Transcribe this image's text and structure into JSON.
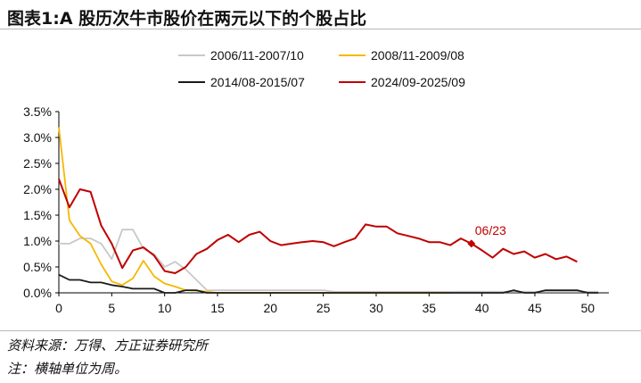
{
  "figure": {
    "title": "图表1:A 股历次牛市股价在两元以下的个股占比",
    "source_note": "资料来源：万得、方正证券研究所",
    "axis_note": "注：横轴单位为周。"
  },
  "colors": {
    "s2006": "#c8c8c8",
    "s2008": "#f5b800",
    "s2014": "#1a1a1a",
    "s2024": "#c00000",
    "axis": "#000000"
  },
  "chart_data": {
    "type": "line",
    "title": "",
    "xlabel": "",
    "ylabel": "",
    "xlim": [
      0,
      52
    ],
    "ylim": [
      0,
      3.5
    ],
    "x_ticks": [
      "0",
      "5",
      "10",
      "15",
      "20",
      "25",
      "30",
      "35",
      "40",
      "45",
      "50"
    ],
    "y_ticks": [
      "0.0%",
      "0.5%",
      "1.0%",
      "1.5%",
      "2.0%",
      "2.5%",
      "3.0%",
      "3.5%"
    ],
    "legend": "top",
    "grid": false,
    "series": [
      {
        "name": "2006/11-2007/10",
        "color_key": "s2006",
        "values": [
          0.95,
          0.95,
          1.05,
          1.05,
          0.95,
          0.65,
          1.22,
          1.22,
          0.85,
          0.75,
          0.5,
          0.6,
          0.45,
          0.25,
          0.05,
          0.05,
          0.05,
          0.05,
          0.05,
          0.05,
          0.05,
          0.05,
          0.05,
          0.05,
          0.05,
          0.05,
          0.02,
          0.02,
          0.02,
          0.02,
          0.02,
          0.02,
          0.02,
          0.02,
          0.02,
          0.02,
          0.02,
          0.02,
          0.02,
          0.02,
          0.02,
          0.02,
          0.02,
          0.02,
          0.02,
          0.02,
          0.02,
          0.02,
          0.02,
          0.02,
          0.02,
          0.02
        ]
      },
      {
        "name": "2008/11-2009/08",
        "color_key": "s2008",
        "values": [
          3.2,
          1.4,
          1.1,
          0.95,
          0.55,
          0.22,
          0.15,
          0.28,
          0.62,
          0.32,
          0.18,
          0.12,
          0.05,
          0.04,
          0.02,
          0.0,
          0.0,
          0.0,
          0.0,
          0.0,
          0.0,
          0.0,
          0.0,
          0.0,
          0.0,
          0.0,
          0.0,
          0.0,
          0.0,
          0.0,
          0.0,
          0.0,
          0.0,
          0.0,
          0.0,
          0.0,
          0.0,
          0.0
        ]
      },
      {
        "name": "2014/08-2015/07",
        "color_key": "s2014",
        "values": [
          0.35,
          0.25,
          0.25,
          0.2,
          0.2,
          0.15,
          0.12,
          0.08,
          0.08,
          0.08,
          0.0,
          0.0,
          0.05,
          0.05,
          0.0,
          0.0,
          0.0,
          0.0,
          0.0,
          0.0,
          0.0,
          0.0,
          0.0,
          0.0,
          0.0,
          0.0,
          0.0,
          0.0,
          0.0,
          0.0,
          0.0,
          0.0,
          0.0,
          0.0,
          0.0,
          0.0,
          0.0,
          0.0,
          0.0,
          0.0,
          0.0,
          0.0,
          0.0,
          0.05,
          0.0,
          0.0,
          0.05,
          0.05,
          0.05,
          0.05,
          0.0,
          0.0
        ]
      },
      {
        "name": "2024/09-2025/09",
        "color_key": "s2024",
        "values": [
          2.2,
          1.65,
          2.0,
          1.95,
          1.3,
          0.95,
          0.48,
          0.82,
          0.88,
          0.72,
          0.42,
          0.38,
          0.5,
          0.75,
          0.85,
          1.02,
          1.12,
          0.98,
          1.12,
          1.18,
          1.0,
          0.92,
          0.95,
          0.98,
          1.0,
          0.98,
          0.9,
          0.98,
          1.05,
          1.32,
          1.28,
          1.28,
          1.15,
          1.1,
          1.05,
          0.98,
          0.98,
          0.92,
          1.05,
          0.95,
          0.82,
          0.68,
          0.85,
          0.75,
          0.8,
          0.68,
          0.75,
          0.65,
          0.7,
          0.6
        ]
      }
    ],
    "annotations": [
      {
        "series_index": 3,
        "x": 39,
        "y": 0.95,
        "label": "06/23"
      }
    ]
  }
}
